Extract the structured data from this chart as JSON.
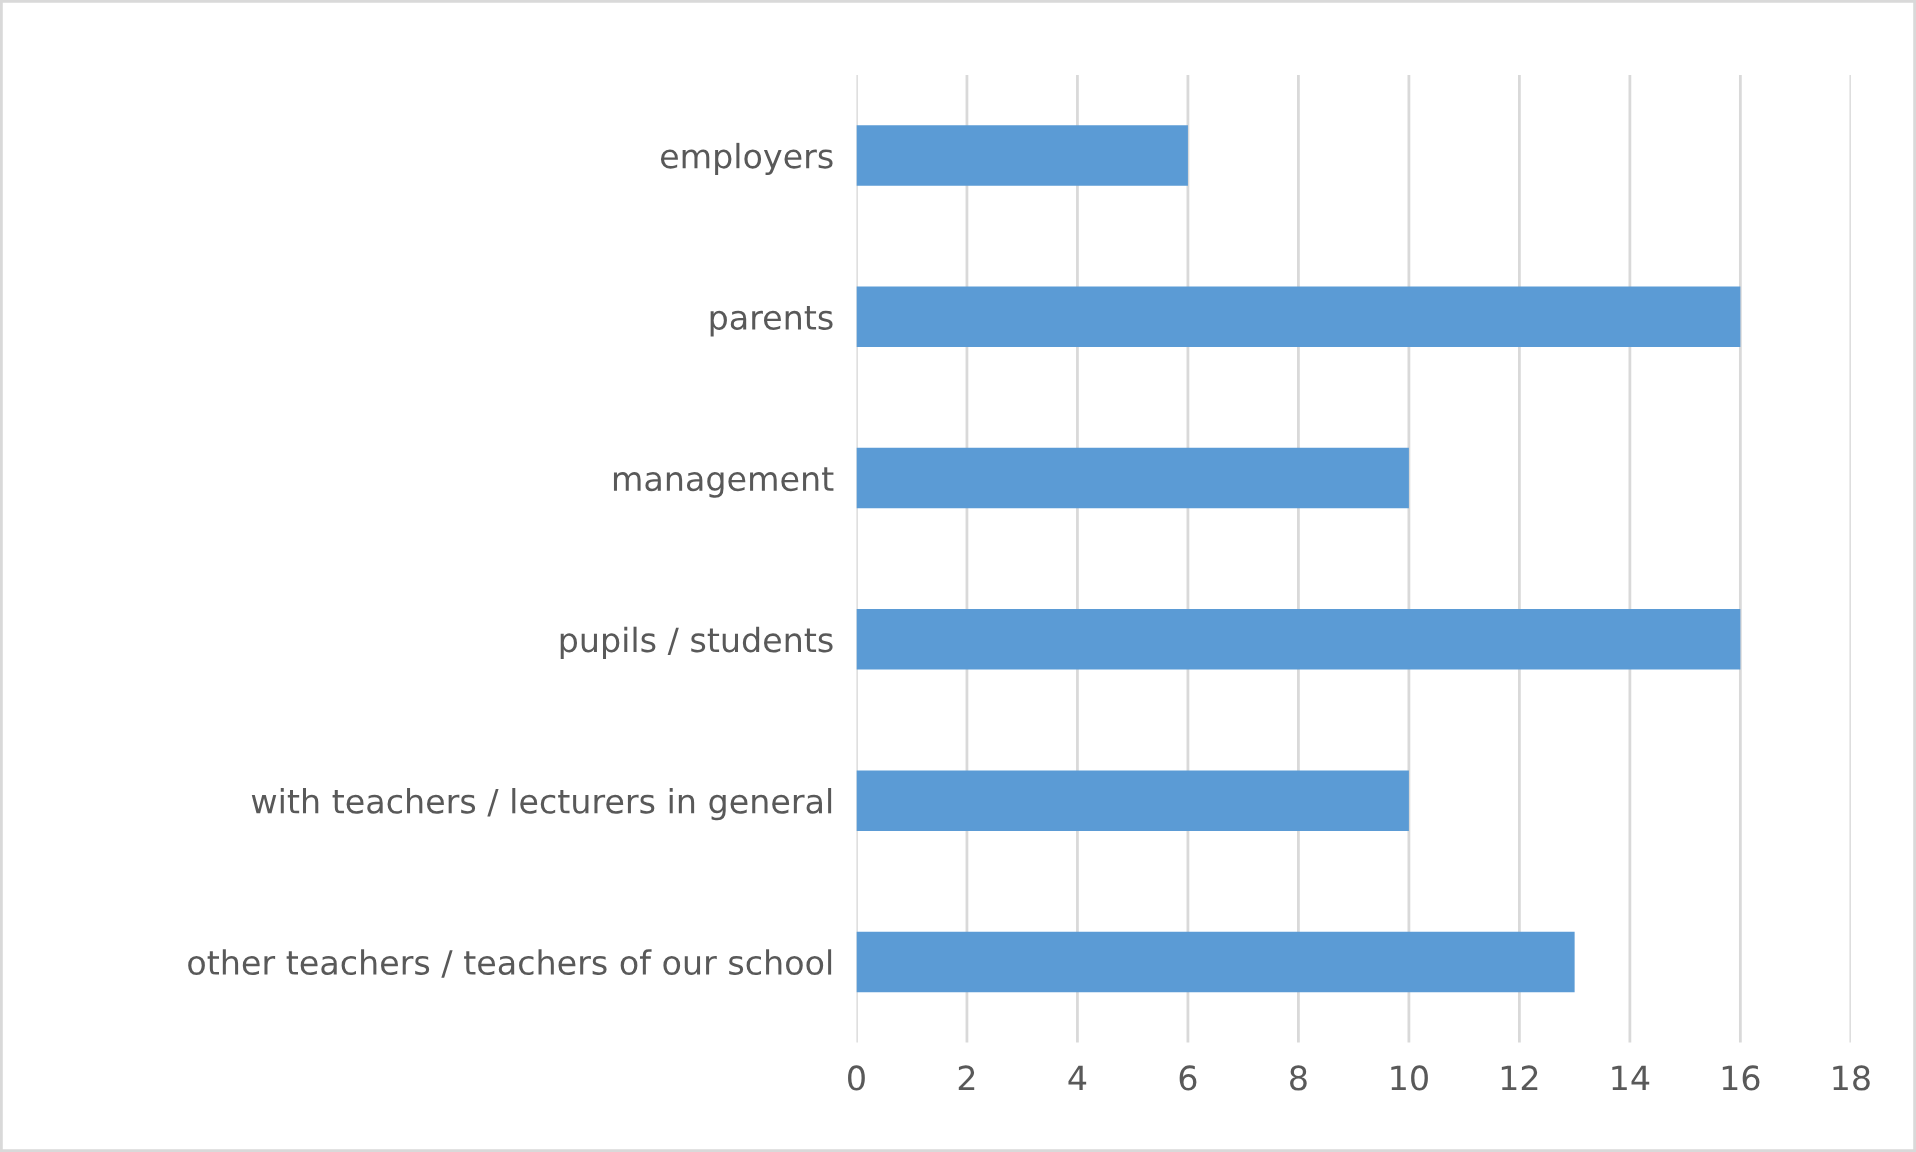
{
  "chart_data": {
    "type": "bar",
    "orientation": "horizontal",
    "categories": [
      "employers",
      "parents",
      "management",
      "pupils / students",
      "with teachers / lecturers in general",
      "other teachers / teachers of our school"
    ],
    "values": [
      6,
      16,
      10,
      16,
      10,
      13
    ],
    "color": "#5b9bd5",
    "xlim": [
      0,
      18
    ],
    "xticks": [
      0,
      2,
      4,
      6,
      8,
      10,
      12,
      14,
      16,
      18
    ],
    "grid": "x",
    "legend": false
  }
}
